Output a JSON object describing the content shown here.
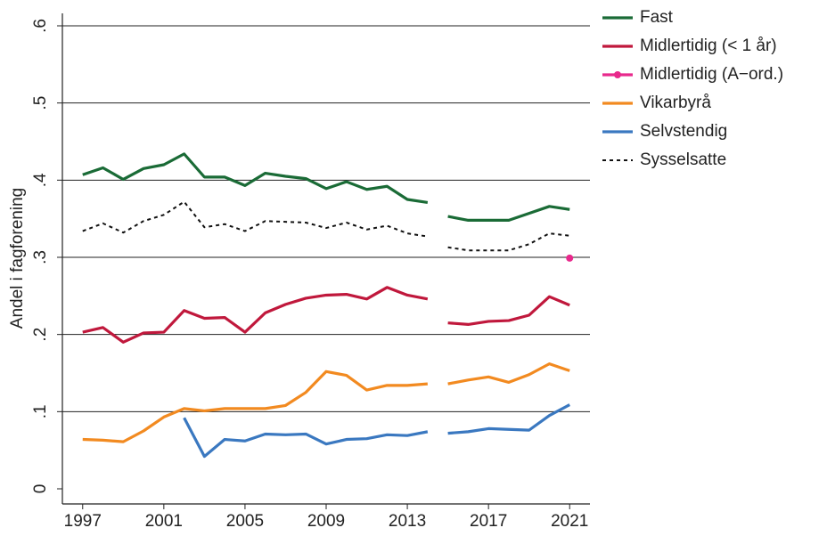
{
  "chart_data": {
    "type": "line",
    "y_label": "Andel i fagforening",
    "x": [
      1997,
      1998,
      1999,
      2000,
      2001,
      2002,
      2003,
      2004,
      2005,
      2006,
      2007,
      2008,
      2009,
      2010,
      2011,
      2012,
      2013,
      2014,
      null,
      2015,
      2016,
      2017,
      2018,
      2019,
      2020,
      2021
    ],
    "series": [
      {
        "name": "Fast",
        "color": "#1a6b36",
        "values": [
          0.407,
          0.416,
          0.401,
          0.415,
          0.42,
          0.434,
          0.404,
          0.404,
          0.393,
          0.409,
          0.405,
          0.402,
          0.389,
          0.398,
          0.388,
          0.392,
          0.375,
          0.371,
          null,
          0.353,
          0.348,
          0.348,
          0.348,
          0.357,
          0.366,
          0.362
        ]
      },
      {
        "name": "Midlertidig (< 1 år)",
        "color": "#c0183c",
        "values": [
          0.203,
          0.209,
          0.19,
          0.202,
          0.203,
          0.231,
          0.221,
          0.222,
          0.203,
          0.228,
          0.239,
          0.247,
          0.251,
          0.252,
          0.246,
          0.261,
          0.251,
          0.246,
          null,
          0.215,
          0.213,
          0.217,
          0.218,
          0.225,
          0.249,
          0.238
        ]
      },
      {
        "name": "Midlertidig (A−ord.)",
        "color": "#e8298c",
        "marker": true,
        "values": [
          null,
          null,
          null,
          null,
          null,
          null,
          null,
          null,
          null,
          null,
          null,
          null,
          null,
          null,
          null,
          null,
          null,
          null,
          null,
          null,
          null,
          null,
          null,
          null,
          null,
          0.299
        ]
      },
      {
        "name": "Vikarbyrå",
        "color": "#f28a20",
        "values": [
          0.064,
          0.063,
          0.061,
          0.075,
          0.093,
          0.104,
          0.101,
          0.104,
          0.104,
          0.104,
          0.108,
          0.125,
          0.152,
          0.147,
          0.128,
          0.134,
          0.134,
          0.136,
          null,
          0.136,
          0.141,
          0.145,
          0.138,
          0.148,
          0.162,
          0.153
        ]
      },
      {
        "name": "Selvstendig",
        "color": "#3a78c0",
        "values": [
          null,
          null,
          null,
          null,
          null,
          0.092,
          0.042,
          0.064,
          0.062,
          0.071,
          0.07,
          0.071,
          0.058,
          0.064,
          0.065,
          0.07,
          0.069,
          0.074,
          null,
          0.072,
          0.074,
          0.078,
          0.077,
          0.076,
          0.095,
          0.109
        ]
      },
      {
        "name": "Sysselsatte",
        "color": "#111111",
        "dashed": true,
        "values": [
          0.334,
          0.344,
          0.332,
          0.347,
          0.355,
          0.372,
          0.339,
          0.343,
          0.334,
          0.347,
          0.346,
          0.345,
          0.338,
          0.345,
          0.336,
          0.341,
          0.331,
          0.327,
          null,
          0.313,
          0.309,
          0.309,
          0.309,
          0.317,
          0.331,
          0.328
        ]
      }
    ],
    "xlim": [
      1996,
      2022
    ],
    "xticks": [
      1997,
      2001,
      2005,
      2009,
      2013,
      2017,
      2021
    ],
    "ylim": [
      0,
      0.6
    ],
    "yticks": [
      0,
      {
        "value": 0.1,
        "label": ".1"
      },
      {
        "value": 0.2,
        "label": ".2"
      },
      {
        "value": 0.3,
        "label": ".3"
      },
      {
        "value": 0.4,
        "label": ".4"
      },
      {
        "value": 0.5,
        "label": ".5"
      },
      {
        "value": 0.6,
        "label": ".6"
      }
    ],
    "grid": true,
    "legend": "right"
  }
}
